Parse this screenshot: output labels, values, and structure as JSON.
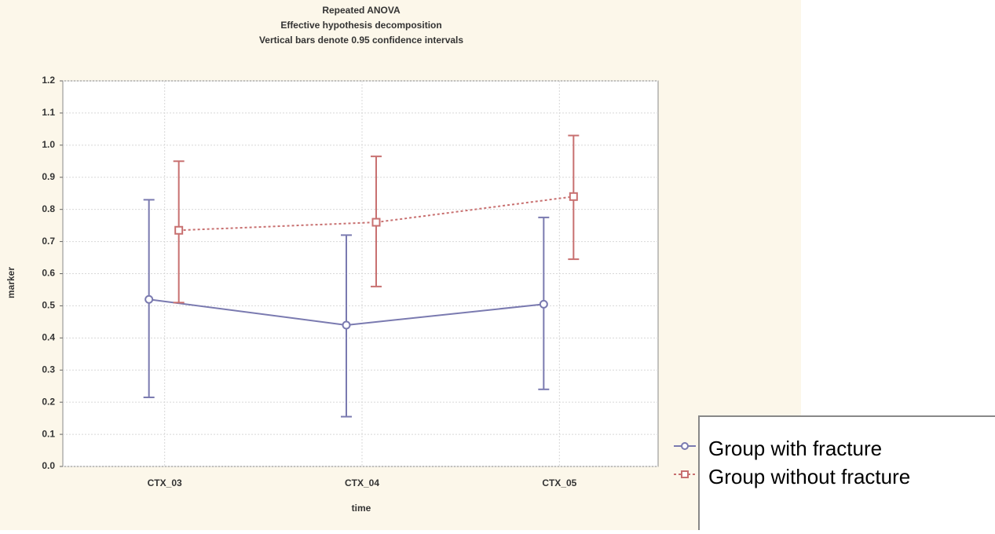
{
  "chart_data": {
    "type": "errorbar-line",
    "title": "Repeated ANOVA",
    "subtitle": [
      "Effective hypothesis decomposition",
      "Vertical bars denote 0.95 confidence intervals"
    ],
    "x_label": "time",
    "y_label": "marker",
    "categories": [
      "CTX_03",
      "CTX_04",
      "CTX_05"
    ],
    "series": [
      {
        "name": "Group with fracture",
        "color": "#7a7ab0",
        "dash": false,
        "values": [
          0.52,
          0.44,
          0.505
        ],
        "lower": [
          0.215,
          0.155,
          0.24
        ],
        "upper": [
          0.83,
          0.72,
          0.775
        ]
      },
      {
        "name": "Group without fracture",
        "color": "#c87070",
        "dash": true,
        "values": [
          0.735,
          0.76,
          0.84
        ],
        "lower": [
          0.51,
          0.56,
          0.645
        ],
        "upper": [
          0.95,
          0.965,
          1.03
        ]
      }
    ],
    "ylim": [
      0,
      1.2
    ],
    "yticks": [
      {
        "value": 0,
        "label": "0.0"
      },
      0.1,
      0.2,
      0.3,
      0.4,
      0.5,
      0.6,
      0.7,
      0.8,
      0.9,
      {
        "value": 1,
        "label": "1.0"
      },
      1.1,
      1.2
    ],
    "grid": true
  }
}
